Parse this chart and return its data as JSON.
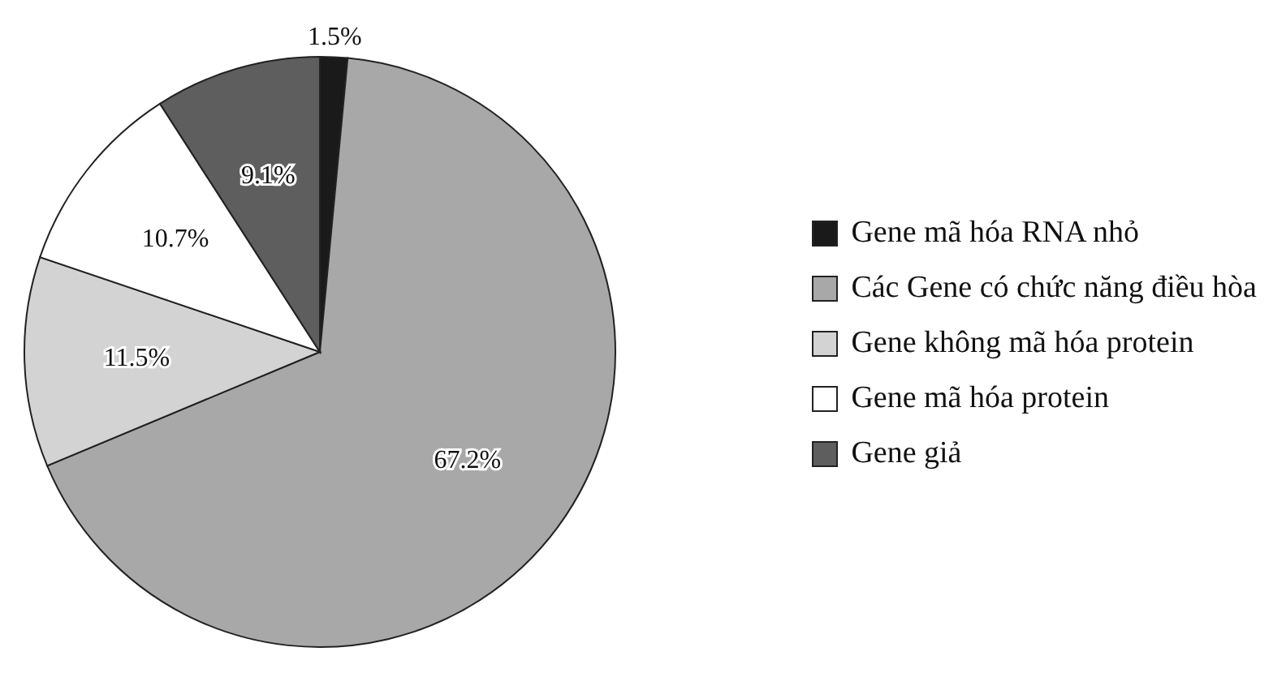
{
  "chart_data": {
    "type": "pie",
    "categories": [
      "Gene mã hóa RNA nhỏ",
      "Các Gene có chức năng điều hòa",
      "Gene không mã hóa protein",
      "Gene mã hóa protein",
      "Gene giả"
    ],
    "values": [
      1.5,
      67.2,
      11.5,
      10.7,
      9.1
    ],
    "value_labels": [
      "1.5%",
      "67.2%",
      "11.5%",
      "10.7%",
      "9.1%"
    ],
    "colors": [
      "#1a1a1a",
      "#a8a8a8",
      "#d3d3d3",
      "#ffffff",
      "#5e5e5e"
    ],
    "legend": "right"
  }
}
